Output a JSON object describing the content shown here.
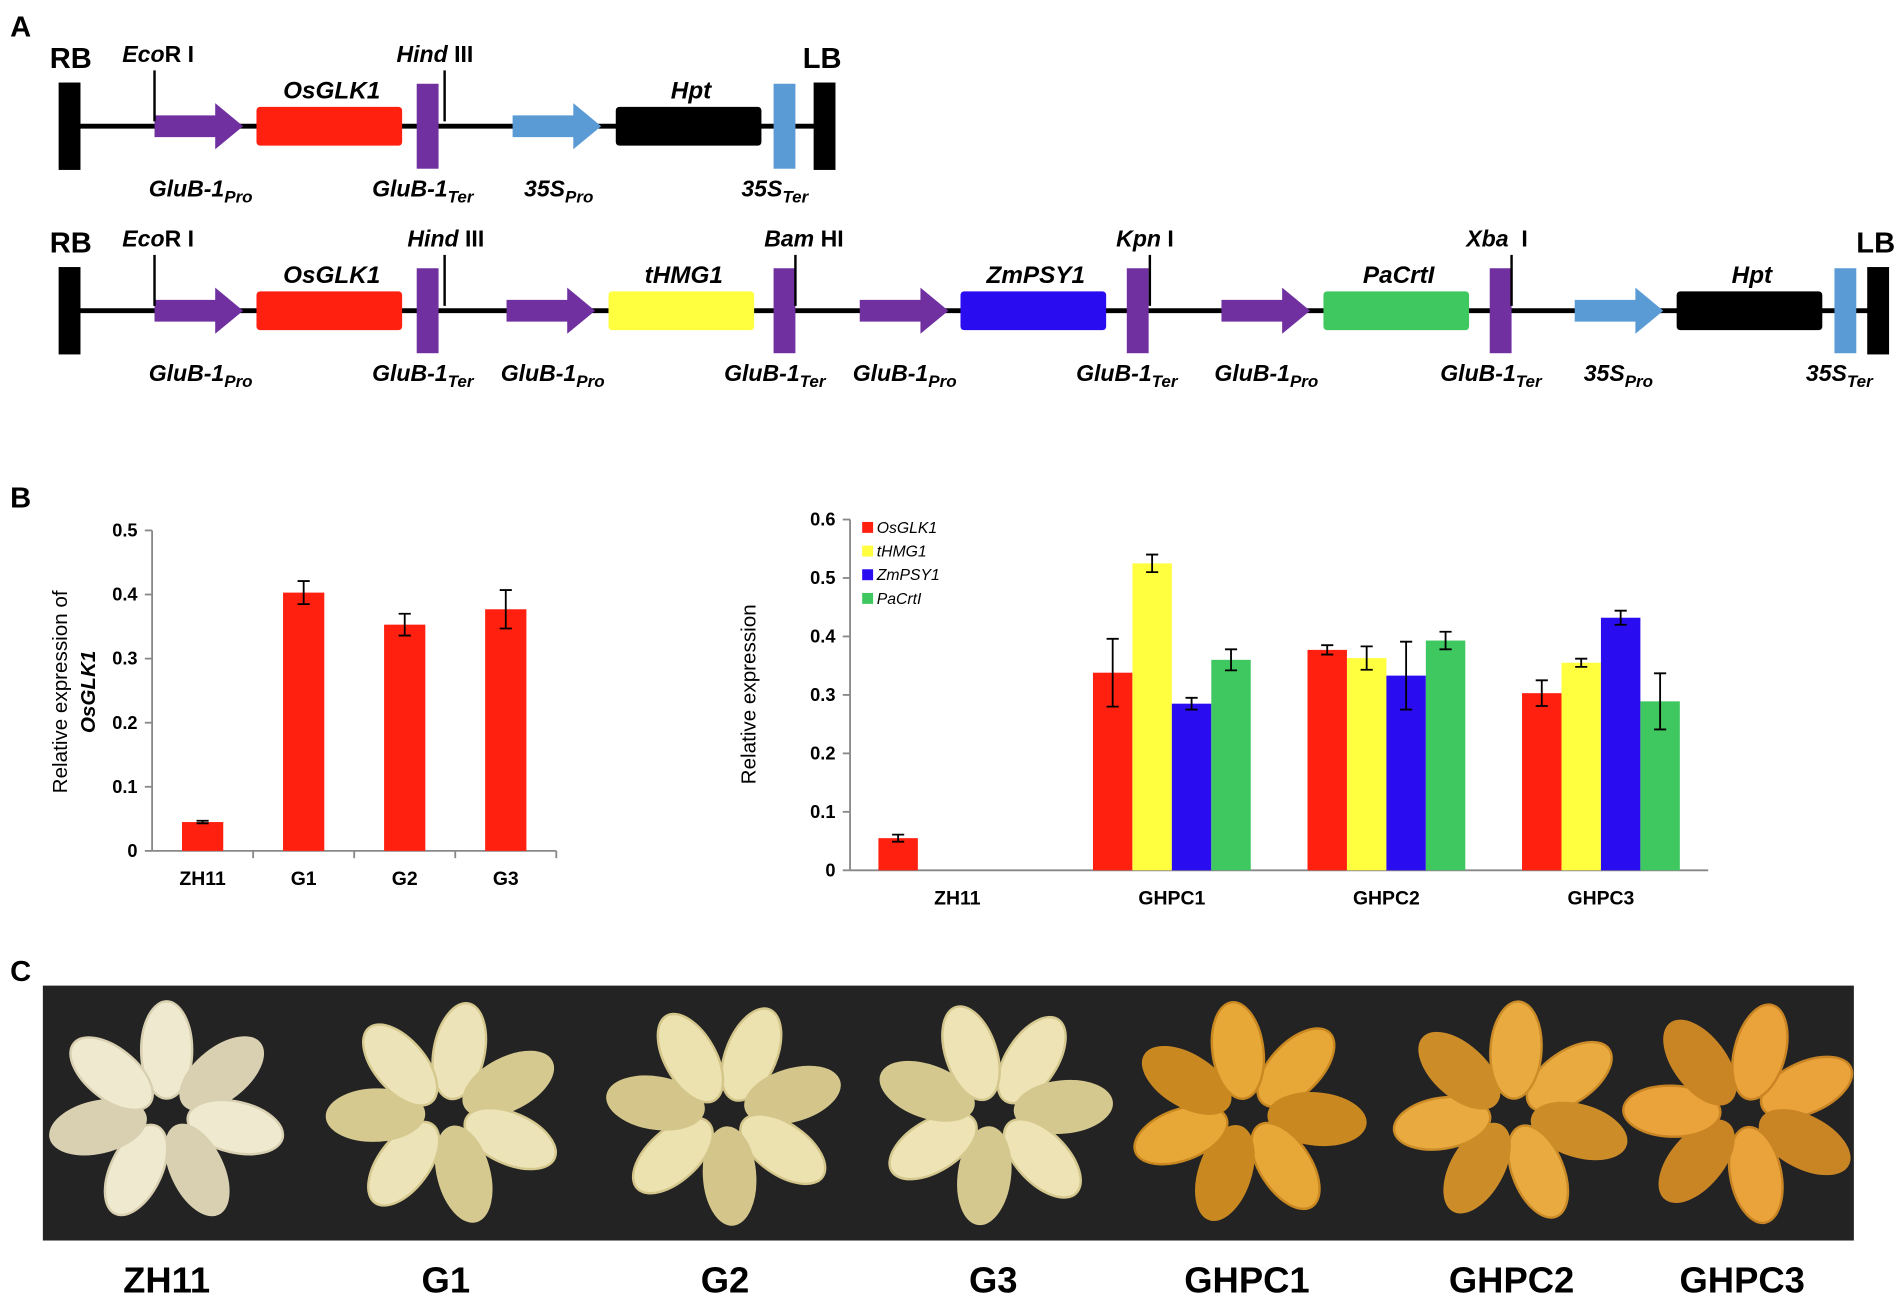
{
  "panel_labels": [
    "A",
    "B",
    "C"
  ],
  "construct_a": {
    "left_border": "RB",
    "right_border": "LB",
    "sites": [
      {
        "italic": "Eco",
        "rest": "R I"
      },
      {
        "italic": "Hind",
        "rest": " III"
      }
    ],
    "genes": [
      "OsGLK1",
      "Hpt"
    ],
    "elements": [
      {
        "name": "GluB-1",
        "sub": "Pro"
      },
      {
        "name": "GluB-1",
        "sub": "Ter"
      },
      {
        "name": "35S",
        "sub": "Pro"
      },
      {
        "name": "35S",
        "sub": "Ter"
      }
    ]
  },
  "construct_b": {
    "left_border": "RB",
    "right_border": "LB",
    "sites": [
      {
        "italic": "Eco",
        "rest": "R I"
      },
      {
        "italic": "Hind",
        "rest": " III"
      },
      {
        "italic": "Bam",
        "rest": " HI"
      },
      {
        "italic": "Kpn",
        "rest": " I"
      },
      {
        "italic": "Xba",
        "rest": "  I"
      }
    ],
    "genes": [
      "OsGLK1",
      "tHMG1",
      "ZmPSY1",
      "PaCrtI",
      "Hpt"
    ],
    "elements": [
      {
        "name": "GluB-1",
        "sub": "Pro"
      },
      {
        "name": "GluB-1",
        "sub": "Ter"
      },
      {
        "name": "GluB-1",
        "sub": "Pro"
      },
      {
        "name": "GluB-1",
        "sub": "Ter"
      },
      {
        "name": "GluB-1",
        "sub": "Pro"
      },
      {
        "name": "GluB-1",
        "sub": "Ter"
      },
      {
        "name": "GluB-1",
        "sub": "Pro"
      },
      {
        "name": "GluB-1",
        "sub": "Ter"
      },
      {
        "name": "35S",
        "sub": "Pro"
      },
      {
        "name": "35S",
        "sub": "Ter"
      }
    ]
  },
  "chart_data": [
    {
      "type": "bar",
      "y_label": [
        "Relative expression of",
        "OsGLK1"
      ],
      "categories": [
        "ZH11",
        "G1",
        "G2",
        "G3"
      ],
      "values": [
        0.045,
        0.403,
        0.353,
        0.377
      ],
      "errors": [
        0.002,
        0.018,
        0.017,
        0.03
      ],
      "color": "#ff2010",
      "ylim": [
        0,
        0.5
      ],
      "yticks": [
        0,
        0.1,
        0.2,
        0.3,
        0.4,
        0.5
      ]
    },
    {
      "type": "bar",
      "y_label": [
        "Relative expression"
      ],
      "categories": [
        "ZH11",
        "GHPC1",
        "GHPC2",
        "GHPC3"
      ],
      "series": [
        {
          "name": "OsGLK1",
          "color": "#ff2010",
          "values": [
            0.055,
            0.338,
            0.377,
            0.303
          ],
          "errors": [
            0.006,
            0.058,
            0.008,
            0.022
          ]
        },
        {
          "name": "tHMG1",
          "color": "#ffff40",
          "values": [
            null,
            0.525,
            0.363,
            0.355
          ],
          "errors": [
            null,
            0.015,
            0.02,
            0.007
          ]
        },
        {
          "name": "ZmPSY1",
          "color": "#2a0cf0",
          "values": [
            null,
            0.285,
            0.333,
            0.432
          ],
          "errors": [
            null,
            0.01,
            0.058,
            0.012
          ]
        },
        {
          "name": "PaCrtI",
          "color": "#40c860",
          "values": [
            null,
            0.36,
            0.393,
            0.289
          ],
          "errors": [
            null,
            0.018,
            0.015,
            0.048
          ]
        }
      ],
      "ylim": [
        0,
        0.6
      ],
      "yticks": [
        0,
        0.1,
        0.2,
        0.3,
        0.4,
        0.5,
        0.6
      ],
      "legend": "top-left"
    }
  ],
  "photo": {
    "labels": [
      "ZH11",
      "G1",
      "G2",
      "G3",
      "GHPC1",
      "GHPC2",
      "GHPC3"
    ]
  }
}
